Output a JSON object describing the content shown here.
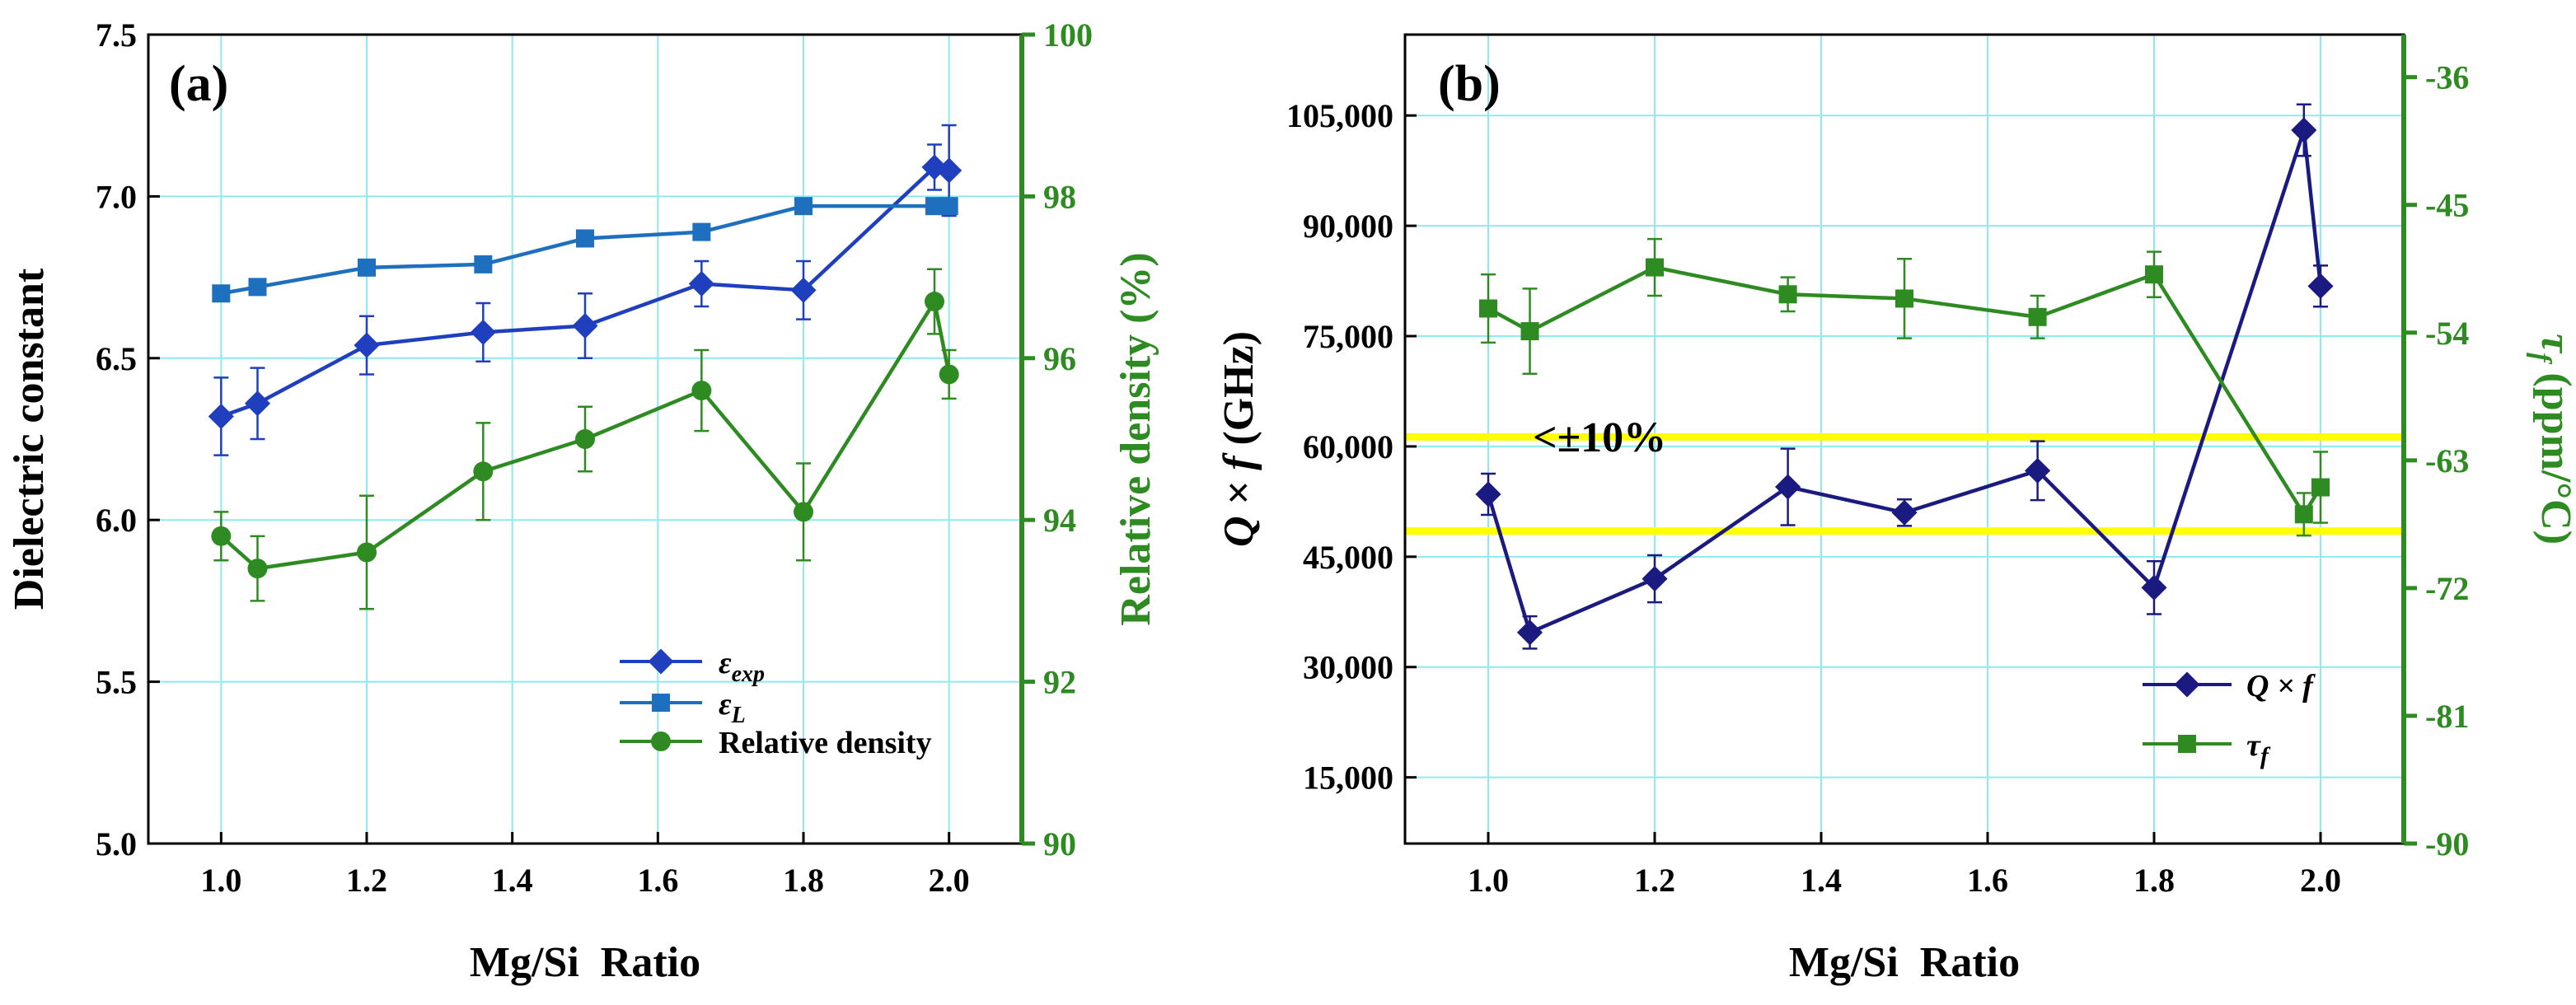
{
  "chart_data": [
    {
      "panel_label": "(a)",
      "type": "line",
      "xlabel": "Mg/Si  Ratio",
      "ylabel_left": "Dielectric constant",
      "ylabel_right": "Relative density (%)",
      "xlim": [
        0.9,
        2.1
      ],
      "ylim_left": [
        5.0,
        7.5
      ],
      "ylim_right": [
        90,
        100
      ],
      "x_ticks": [
        1.0,
        1.2,
        1.4,
        1.6,
        1.8,
        2.0
      ],
      "x_tick_labels": [
        "1.0",
        "1.2",
        "1.4",
        "1.6",
        "1.8",
        "2.0"
      ],
      "y_left_ticks": [
        5.0,
        5.5,
        6.0,
        6.5,
        7.0,
        7.5
      ],
      "y_left_tick_labels": [
        "5.0",
        "5.5",
        "6.0",
        "6.5",
        "7.0",
        "7.5"
      ],
      "y_right_ticks": [
        90,
        92,
        94,
        96,
        98,
        100
      ],
      "y_right_tick_labels": [
        "90",
        "92",
        "94",
        "96",
        "98",
        "100"
      ],
      "grid": true,
      "x": [
        1.0,
        1.05,
        1.2,
        1.36,
        1.5,
        1.66,
        1.8,
        1.98,
        2.0
      ],
      "series": [
        {
          "name": "εexp",
          "name_main": "ε",
          "name_sub": "exp",
          "axis": "left",
          "marker": "diamond",
          "color": "#1f3fbf",
          "values": [
            6.32,
            6.36,
            6.54,
            6.58,
            6.6,
            6.73,
            6.71,
            7.09,
            7.08
          ],
          "errors": [
            0.12,
            0.11,
            0.09,
            0.09,
            0.1,
            0.07,
            0.09,
            0.07,
            0.14
          ]
        },
        {
          "name": "εL",
          "name_main": "ε",
          "name_sub": "L",
          "axis": "left",
          "marker": "square",
          "color": "#1f6fbf",
          "values": [
            6.7,
            6.72,
            6.78,
            6.79,
            6.87,
            6.89,
            6.97,
            6.97,
            6.97
          ],
          "errors": null
        },
        {
          "name": "Relative density",
          "axis": "right",
          "marker": "circle",
          "color": "#2e8b22",
          "values": [
            93.8,
            93.4,
            93.6,
            94.6,
            95.0,
            95.6,
            94.1,
            96.7,
            95.8
          ],
          "errors": [
            0.3,
            0.4,
            0.7,
            0.6,
            0.4,
            0.5,
            0.6,
            0.4,
            0.3
          ]
        }
      ],
      "legend_position": "bottom-right"
    },
    {
      "panel_label": "(b)",
      "type": "line",
      "xlabel": "Mg/Si  Ratio",
      "ylabel_left": "Q × f (GHz)",
      "ylabel_left_main": "Q × f",
      "ylabel_left_unit": " (GHz)",
      "ylabel_right": "τf (ppm/°C)",
      "ylabel_right_main": "τ",
      "ylabel_right_sub": "f",
      "ylabel_right_unit": " (ppm/°C)",
      "xlim": [
        0.9,
        2.1
      ],
      "ylim_left": [
        6000,
        116000
      ],
      "ylim_right": [
        -90,
        -33
      ],
      "x_ticks": [
        1.0,
        1.2,
        1.4,
        1.6,
        1.8,
        2.0
      ],
      "x_tick_labels": [
        "1.0",
        "1.2",
        "1.4",
        "1.6",
        "1.8",
        "2.0"
      ],
      "y_left_ticks": [
        15000,
        30000,
        45000,
        60000,
        75000,
        90000,
        105000
      ],
      "y_left_tick_labels": [
        "15,000",
        "30,000",
        "45,000",
        "60,000",
        "75,000",
        "90,000",
        "105,000"
      ],
      "y_right_ticks": [
        -90,
        -81,
        -72,
        -63,
        -54,
        -45,
        -36
      ],
      "y_right_tick_labels": [
        "-90",
        "-81",
        "-72",
        "-63",
        "-54",
        "-45",
        "-36"
      ],
      "grid": true,
      "x": [
        1.0,
        1.05,
        1.2,
        1.36,
        1.5,
        1.66,
        1.8,
        1.98,
        2.0
      ],
      "series": [
        {
          "name": "Q × f",
          "axis": "left",
          "marker": "diamond",
          "color": "#1a1a80",
          "values": [
            53500,
            34700,
            42000,
            54500,
            51000,
            56700,
            40800,
            103000,
            81800
          ],
          "errors": [
            2800,
            2200,
            3200,
            5200,
            1800,
            4000,
            3600,
            3500,
            2800
          ]
        },
        {
          "name": "τf",
          "name_main": "τ",
          "name_sub": "f",
          "axis": "right",
          "marker": "square",
          "color": "#2e8b22",
          "values": [
            -52.3,
            -53.9,
            -49.4,
            -51.3,
            -51.6,
            -52.9,
            -49.9,
            -66.8,
            -64.9
          ],
          "errors": [
            2.4,
            3.0,
            2.0,
            1.2,
            2.8,
            1.5,
            1.6,
            1.5,
            2.5
          ]
        }
      ],
      "reference_lines": [
        {
          "axis": "left",
          "value": 61300,
          "color": "#ffff00"
        },
        {
          "axis": "left",
          "value": 48500,
          "color": "#ffff00"
        }
      ],
      "annotation": "<±10%",
      "legend_position": "bottom-right"
    }
  ]
}
